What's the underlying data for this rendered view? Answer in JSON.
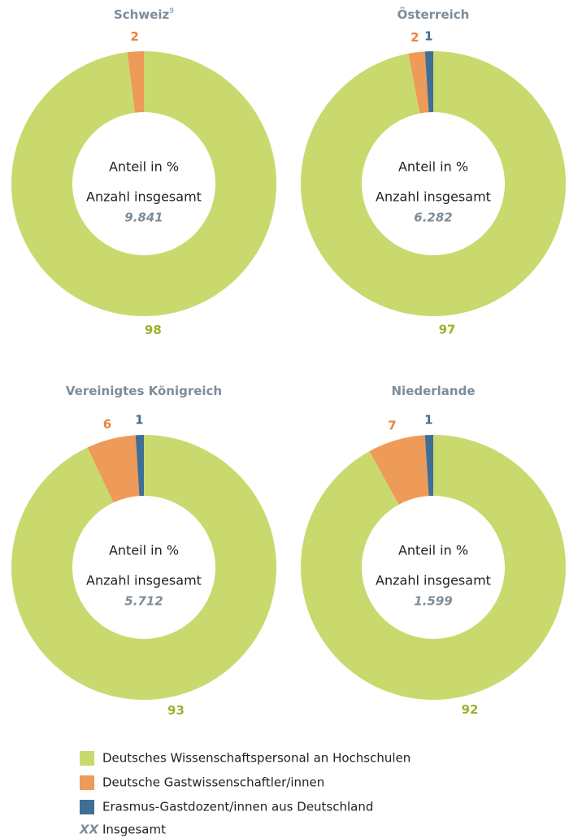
{
  "chart_data": [
    {
      "type": "donut",
      "title": "Schweiz",
      "title_footnote": "9",
      "center_lines": [
        "Anteil in %",
        "Anzahl insgesamt"
      ],
      "total": "9.841",
      "values": [
        98,
        2,
        null
      ]
    },
    {
      "type": "donut",
      "title": "Österreich",
      "center_lines": [
        "Anteil in %",
        "Anzahl insgesamt"
      ],
      "total": "6.282",
      "values": [
        97,
        2,
        1
      ]
    },
    {
      "type": "donut",
      "title": "Vereinigtes Königreich",
      "center_lines": [
        "Anteil in %",
        "Anzahl insgesamt"
      ],
      "total": "5.712",
      "values": [
        93,
        6,
        1
      ]
    },
    {
      "type": "donut",
      "title": "Niederlande",
      "center_lines": [
        "Anteil in %",
        "Anzahl insgesamt"
      ],
      "total": "1.599",
      "values": [
        92,
        7,
        1
      ]
    }
  ],
  "legend": {
    "items": [
      {
        "name": "Deutsches Wissenschaftspersonal an Hochschulen",
        "color": "#c9d96e",
        "label_color": "#9fb12a"
      },
      {
        "name": "Deutsche Gastwissenschaftler/innen",
        "color": "#ee9a58",
        "label_color": "#e8833a"
      },
      {
        "name": "Erasmus-Gastdozent/innen aus Deutschland",
        "color": "#3f6e96",
        "label_color": "#3f6e96"
      }
    ],
    "total_marker": "XX",
    "total_label": "Insgesamt"
  }
}
